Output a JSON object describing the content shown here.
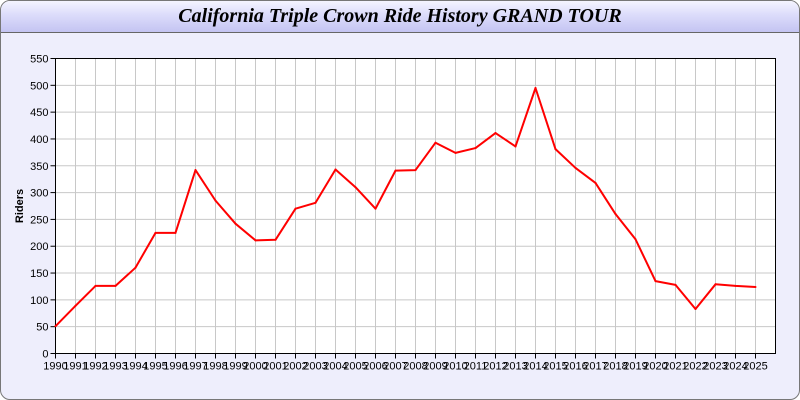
{
  "chart_data": {
    "type": "line",
    "title": "California Triple Crown Ride History GRAND TOUR",
    "xlabel": "",
    "ylabel": "Riders",
    "ylim": [
      0,
      550
    ],
    "yticks": [
      0,
      50,
      100,
      150,
      200,
      250,
      300,
      350,
      400,
      450,
      500,
      550
    ],
    "grid": true,
    "line_color": "#ff0000",
    "x": [
      1990,
      1991,
      1992,
      1993,
      1994,
      1995,
      1996,
      1997,
      1998,
      1999,
      2000,
      2001,
      2002,
      2003,
      2004,
      2005,
      2006,
      2007,
      2008,
      2009,
      2010,
      2011,
      2012,
      2013,
      2014,
      2015,
      2016,
      2017,
      2018,
      2019,
      2020,
      2021,
      2022,
      2023,
      2024,
      2025
    ],
    "series": [
      {
        "values": [
          51,
          89,
          126,
          126,
          160,
          225,
          225,
          342,
          285,
          242,
          211,
          212,
          270,
          281,
          343,
          310,
          270,
          341,
          342,
          393,
          374,
          383,
          411,
          386,
          495,
          381,
          346,
          318,
          260,
          213,
          135,
          128,
          83,
          129,
          126,
          124
        ]
      }
    ]
  }
}
